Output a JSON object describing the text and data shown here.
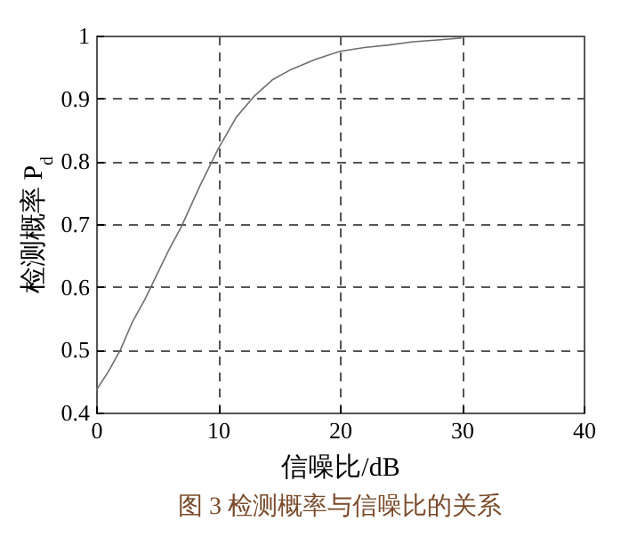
{
  "chart_data": {
    "type": "line",
    "xlabel": "信噪比/dB",
    "ylabel": "检测概率 P$_{d}$",
    "annotations": [
      "图 3  检测概率与信噪比的关系"
    ],
    "x": [
      0,
      1,
      2,
      3,
      4,
      5,
      6,
      7,
      8.5,
      10,
      11.5,
      13,
      14.5,
      16,
      18,
      20,
      22,
      24,
      26,
      28,
      30
    ],
    "series": [
      {
        "color": "#6e6e6e",
        "values": [
          0.435,
          0.465,
          0.5,
          0.545,
          0.58,
          0.62,
          0.66,
          0.696,
          0.76,
          0.819,
          0.87,
          0.904,
          0.93,
          0.946,
          0.962,
          0.975,
          0.981,
          0.985,
          0.99,
          0.993,
          0.996
        ]
      }
    ],
    "xlim": [
      0,
      40
    ],
    "ylim": [
      0.4,
      1
    ],
    "xticks": [
      0,
      10,
      20,
      30,
      40
    ],
    "yticks": [
      0.4,
      0.5,
      0.6,
      0.7,
      0.8,
      0.9,
      1
    ],
    "grid": true,
    "line_style": "solid"
  }
}
